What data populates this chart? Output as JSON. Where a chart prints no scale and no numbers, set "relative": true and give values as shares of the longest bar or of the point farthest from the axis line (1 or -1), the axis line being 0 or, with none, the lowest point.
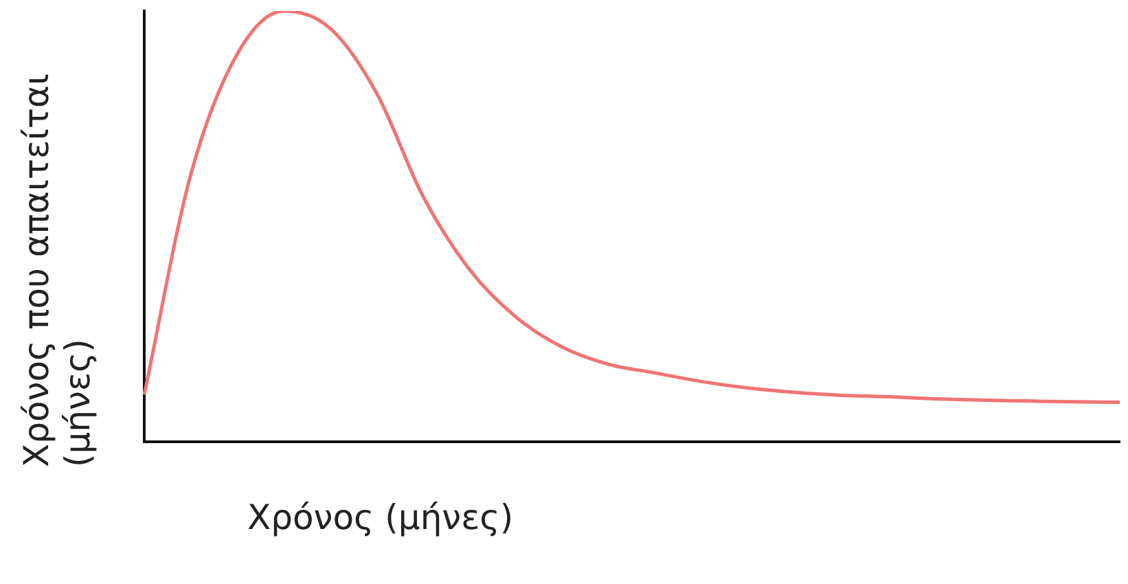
{
  "chart_data": {
    "type": "line",
    "relative": true,
    "xlabel": "Χρόνος (μήνες)",
    "ylabel": "Χρόνος που απαιτείται (μήνες)",
    "categories": [
      null,
      null,
      null,
      null,
      null,
      null,
      null,
      null,
      null,
      null,
      null,
      null,
      null,
      null,
      null,
      null,
      null,
      null,
      null,
      null,
      null,
      null
    ],
    "series": [
      {
        "color": "#f07373",
        "values": [
          0.11,
          0.62,
          0.9,
          1,
          0.96,
          0.81,
          0.57,
          0.4,
          0.29,
          0.22,
          0.18,
          0.16,
          0.14,
          0.125,
          0.115,
          0.108,
          0.105,
          0.1,
          0.097,
          0.095,
          0.093,
          0.092
        ]
      }
    ],
    "legend": false,
    "grid": false,
    "marker": "none"
  }
}
